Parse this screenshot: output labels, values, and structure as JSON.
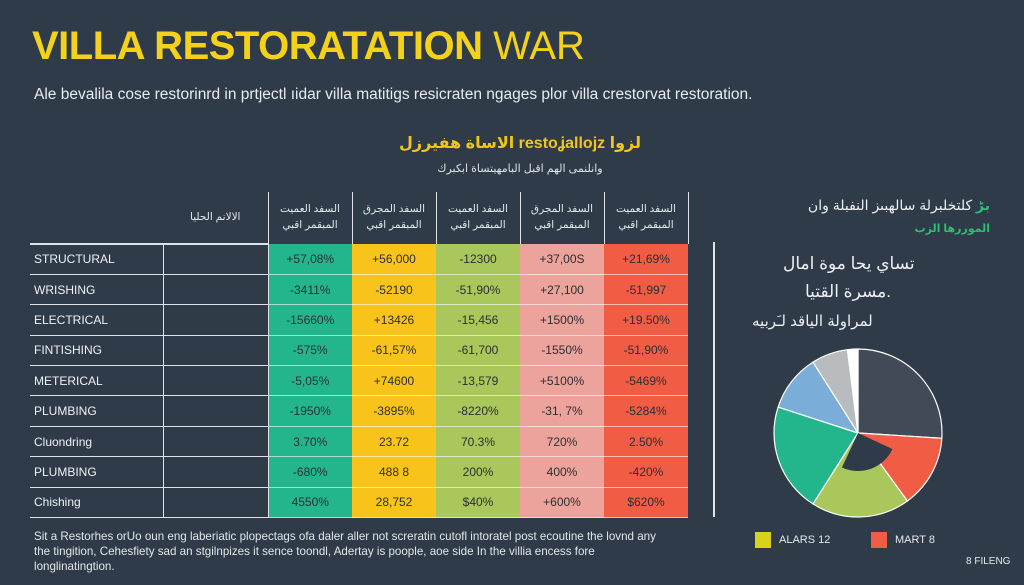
{
  "header": {
    "title_bold": "VILLA RESTORATATION",
    "title_light": "WAR",
    "subtitle": "Ale bevalila cose restorinrd in prtjectl ıidar villa matitigs resicraten ngages plor villa crestorvat restoration."
  },
  "table_heading": {
    "title": "لزوا restoʝallojz الاساة هفيرزل",
    "subtitle": "وانلنمی الهم اقبل البامهیتساة ابکبرك"
  },
  "colors": {
    "background": "#2f3b49",
    "accent": "#f4d21c",
    "col1": "#23b58c",
    "col2": "#f8c31a",
    "col3": "#a9c75a",
    "col4": "#eba39c",
    "col5": "#f15c45"
  },
  "chart_data": [
    {
      "type": "table",
      "columns": [
        "الالانم الحليا",
        "السفد العميت المبقمر اقبي",
        "السفد المجرق المبقمر اقبي",
        "السفد العميت المبقمر اقبي",
        "السفد المجرق المبقمر اقبي",
        "السفد العميت المبقمر اقبي"
      ],
      "rows": [
        {
          "label": "STRUCTURAL",
          "values": [
            "+57,08%",
            "+56,000",
            "-12300",
            "+37,00S",
            "+21,69%"
          ]
        },
        {
          "label": "WRISHING",
          "values": [
            "-3411%",
            "-52190",
            "-51,90%",
            "+27,100",
            "-51,997"
          ]
        },
        {
          "label": "ELECTRICAL",
          "values": [
            "-15660%",
            "+13426",
            "-15,456",
            "+1500%",
            "+19.50%"
          ]
        },
        {
          "label": "FINTISHING",
          "values": [
            "-575%",
            "-61,57%",
            "-61,700",
            "-1550%",
            "-51,90%"
          ]
        },
        {
          "label": "METERICAL",
          "values": [
            "-5,05%",
            "+74600",
            "-13,579",
            "+5100%",
            "-5469%"
          ]
        },
        {
          "label": "PLUMBING",
          "values": [
            "-1950%",
            "-3895%",
            "-8220%",
            "-31, 7%",
            "-5284%"
          ]
        },
        {
          "label": "Cluondring",
          "values": [
            "3.70%",
            "23.72",
            "70.3%",
            "720%",
            "2.50%"
          ]
        },
        {
          "label": "PLUMBING",
          "values": [
            "-680%",
            "488 8",
            "200%",
            "400%",
            "-420%"
          ]
        },
        {
          "label": "Chishing",
          "values": [
            "4550%",
            "28,752",
            "$40%",
            "+600%",
            "$620%"
          ]
        }
      ]
    },
    {
      "type": "pie",
      "slices": [
        {
          "value": 26,
          "color": "#414b57"
        },
        {
          "value": 14,
          "color": "#f15c45"
        },
        {
          "value": 19,
          "color": "#a9c75a"
        },
        {
          "value": 21,
          "color": "#23b58c"
        },
        {
          "value": 11,
          "color": "#7aaed8"
        },
        {
          "value": 7,
          "color": "#b9bcbf"
        },
        {
          "value": 2,
          "color": "#ffffff"
        }
      ],
      "legend": [
        {
          "label": "ALARS 12",
          "color": "#d8d21c"
        },
        {
          "label": "MART 8",
          "color": "#f15c45"
        }
      ]
    }
  ],
  "right_panel": {
    "title_mark": "بڑ",
    "title": "كلتخلبرلة سالهبىز النفبلة وان",
    "subtitle": "الموررها الزب",
    "pie_text_1": "تساي يحا موة امال",
    "pie_text_2": ".مسرة القتيا",
    "pie_text_3": "لمراولة الياقد لـَربيه"
  },
  "footer": {
    "text": "Sit a Restorhes orUo oun eng laberiatic plopectags ofa daler aller not screratin cutofl intoratel post ecoutine the lovnd any the tingition, Cehesfiety sad an stgilnpizes it sence toondl, Adertay is poople, aoe side In the villia encess fore longlinatingtion."
  },
  "brand": "8 FILENG"
}
